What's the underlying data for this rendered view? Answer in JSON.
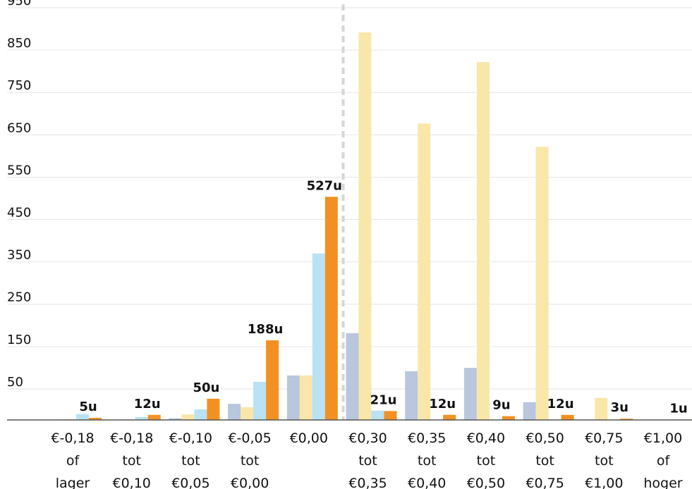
{
  "chart_data": {
    "type": "bar",
    "title": "",
    "xlabel": "",
    "ylabel": "",
    "ylim": [
      0,
      980
    ],
    "grid": true,
    "yticks": [
      50,
      150,
      250,
      350,
      450,
      550,
      650,
      750,
      850,
      950
    ],
    "categories": [
      [
        "€-0,18",
        "of",
        "lager"
      ],
      [
        "€-0,18",
        "tot",
        "€0,10"
      ],
      [
        "€-0,10",
        "tot",
        "€0,05"
      ],
      [
        "€-0,05",
        "tot",
        "€0,00"
      ],
      [
        "€0,00"
      ],
      [
        "€0,30",
        "tot",
        "€0,35"
      ],
      [
        "€0,35",
        "tot",
        "€0,40"
      ],
      [
        "€0,40",
        "tot",
        "€0,50"
      ],
      [
        "€0,50",
        "tot",
        "€0,75"
      ],
      [
        "€0,75",
        "tot",
        "€1,00"
      ],
      [
        "€1,00",
        "of",
        "hoger"
      ]
    ],
    "series": [
      {
        "color": "#b8c7de",
        "values": [
          0,
          0,
          4,
          38,
          105,
          205,
          115,
          123,
          42,
          0,
          0
        ]
      },
      {
        "color": "#f9e7a9",
        "values": [
          2,
          1,
          13,
          30,
          105,
          915,
          700,
          845,
          645,
          52,
          0
        ]
      },
      {
        "color": "#b9e2f4",
        "values": [
          14,
          7,
          25,
          90,
          393,
          22,
          0,
          0,
          0,
          0,
          0
        ]
      },
      {
        "color": "#f29121",
        "values": [
          5,
          12,
          50,
          188,
          527,
          21,
          12,
          9,
          12,
          3,
          1
        ]
      }
    ],
    "data_labels": [
      "5u",
      "12u",
      "50u",
      "188u",
      "527u",
      "21u",
      "12u",
      "9u",
      "12u",
      "3u",
      "1u"
    ],
    "divider_after_category": 4
  },
  "colors": {
    "grid": "#e6e6e6",
    "axis": "#555555",
    "divider": "#d6d6d6",
    "text": "#111111"
  }
}
